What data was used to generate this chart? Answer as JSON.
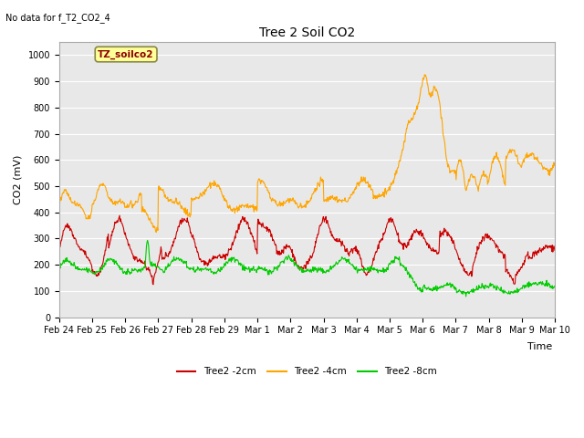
{
  "title": "Tree 2 Soil CO2",
  "subtitle": "No data for f_T2_CO2_4",
  "xlabel": "Time",
  "ylabel": "CO2 (mV)",
  "ylim": [
    0,
    1050
  ],
  "yticks": [
    0,
    100,
    200,
    300,
    400,
    500,
    600,
    700,
    800,
    900,
    1000
  ],
  "background_color": "#e8e8e8",
  "legend_label": "TZ_soilco2",
  "legend_box_color": "#ffff99",
  "legend_box_edge": "#888844",
  "series_labels": [
    "Tree2 -2cm",
    "Tree2 -4cm",
    "Tree2 -8cm"
  ],
  "series_colors": [
    "#cc0000",
    "#ffa500",
    "#00cc00"
  ],
  "xtick_labels": [
    "Feb 24",
    "Feb 25",
    "Feb 26",
    "Feb 27",
    "Feb 28",
    "Feb 29",
    "Mar 1",
    "Mar 2",
    "Mar 3",
    "Mar 4",
    "Mar 5",
    "Mar 6",
    "Mar 7",
    "Mar 8",
    "Mar 9",
    "Mar 10"
  ],
  "num_points": 960
}
